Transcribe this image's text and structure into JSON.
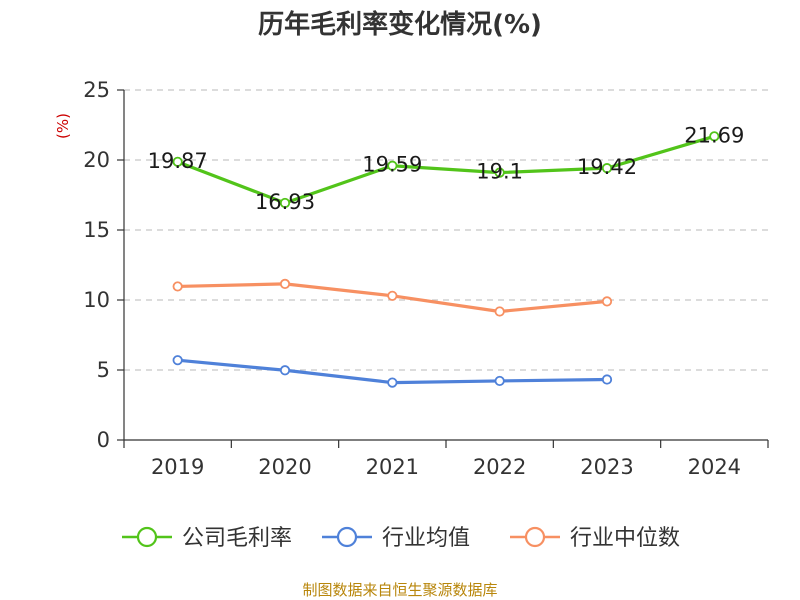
{
  "chart_data": {
    "type": "line",
    "title": "历年毛利率变化情况(%)",
    "unit_label": "(%)",
    "categories": [
      "2019",
      "2020",
      "2021",
      "2022",
      "2023",
      "2024"
    ],
    "ylim": [
      0,
      25
    ],
    "yticks": [
      "0",
      "5",
      "10",
      "15",
      "20",
      "25"
    ],
    "grid": true,
    "legend_position": "bottom",
    "series": [
      {
        "name": "公司毛利率",
        "color": "#52c41a",
        "values": [
          19.87,
          16.93,
          19.59,
          19.1,
          19.42,
          21.69
        ],
        "labels": [
          "19.87",
          "16.93",
          "19.59",
          "19.1",
          "19.42",
          "21.69"
        ]
      },
      {
        "name": "行业均值",
        "color": "#4f81d9",
        "values": [
          5.7,
          4.98,
          4.1,
          4.22,
          4.32,
          null
        ]
      },
      {
        "name": "行业中位数",
        "color": "#f79062",
        "values": [
          10.97,
          11.15,
          10.3,
          9.18,
          9.9,
          null
        ]
      }
    ],
    "source": "制图数据来自恒生聚源数据库"
  }
}
